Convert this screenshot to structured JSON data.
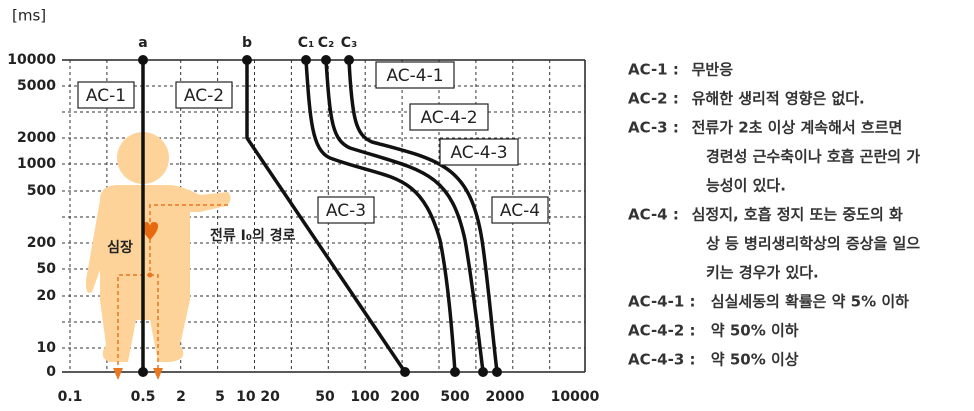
{
  "diagram": {
    "y_unit": "[ms]",
    "y_labels": [
      "10000",
      "5000",
      "2000",
      "1000",
      "500",
      "200",
      "50",
      "20",
      "10",
      "0"
    ],
    "x_labels": [
      "0.1",
      "0.5",
      "2",
      "5",
      "10 20",
      "50",
      "100",
      "200",
      "500",
      "2000",
      "10000"
    ],
    "curve_labels": [
      "a",
      "b",
      "C₁",
      "C₂",
      "C₃"
    ],
    "zones": [
      "AC-1",
      "AC-2",
      "AC-3",
      "AC-4",
      "AC-4-1",
      "AC-4-2",
      "AC-4-3"
    ],
    "body_labels": {
      "heart": "심장",
      "path": "전류 I₀의 경로"
    },
    "legend": [
      {
        "term": "AC-1 :",
        "lines": [
          "무반응"
        ]
      },
      {
        "term": "AC-2 :",
        "lines": [
          "유해한 생리적 영향은 없다."
        ]
      },
      {
        "term": "AC-3 :",
        "lines": [
          "전류가 2초 이상 계속해서 흐르면",
          "경련성 근수축이나 호흡 곤란의 가",
          "능성이 있다."
        ]
      },
      {
        "term": "AC-4 :",
        "lines": [
          "심정지, 호흡 정지 또는 중도의 화",
          "상 등 병리생리학상의 증상을 일으",
          "키는 경우가 있다."
        ]
      },
      {
        "term": "AC-4-1 :",
        "lines": [
          "심실세동의 확률은 약 5% 이하"
        ]
      },
      {
        "term": "AC-4-2 :",
        "lines": [
          "약 50% 이하"
        ]
      },
      {
        "term": "AC-4-3 :",
        "lines": [
          "약 50% 이상"
        ]
      }
    ]
  }
}
